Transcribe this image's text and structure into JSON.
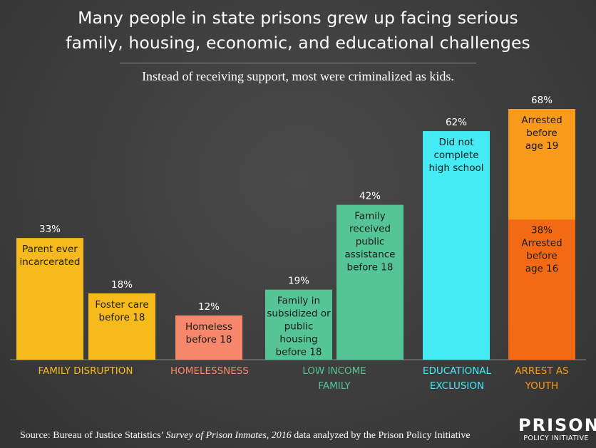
{
  "header": {
    "title_line1": "Many people in state prisons grew up facing serious",
    "title_line2": "family, housing, economic, and educational challenges",
    "subtitle": "Instead of receiving support, most were criminalized as kids."
  },
  "footer": {
    "source_prefix": "Source: Bureau of Justice Statistics’",
    "source_italic": "Survey of Prison Inmates, 2016",
    "source_suffix": "data analyzed by the Prison Policy Initiative",
    "logo_top": "PRISON",
    "logo_bottom": "POLICY INITIATIVE"
  },
  "chart_data": {
    "type": "bar",
    "unit": "%",
    "ylim": [
      0,
      68
    ],
    "grid": false,
    "bars": [
      {
        "value": 33,
        "value_label": "33%",
        "label": [
          "Parent ever",
          "incarcerated"
        ],
        "group": 0,
        "color": "#f6bb1a"
      },
      {
        "value": 18,
        "value_label": "18%",
        "label": [
          "Foster care",
          "before 18"
        ],
        "group": 0,
        "color": "#f6bb1a"
      },
      {
        "value": 12,
        "value_label": "12%",
        "label": [
          "Homeless",
          "before 18"
        ],
        "group": 1,
        "color": "#f7876a"
      },
      {
        "value": 19,
        "value_label": "19%",
        "label": [
          "Family in",
          "subsidized or",
          "public",
          "housing",
          "before 18"
        ],
        "group": 2,
        "color": "#55c596"
      },
      {
        "value": 42,
        "value_label": "42%",
        "label": [
          "Family",
          "received",
          "public",
          "assistance",
          "before 18"
        ],
        "group": 2,
        "color": "#55c596"
      },
      {
        "value": 62,
        "value_label": "62%",
        "label": [
          "Did not",
          "complete",
          "high school"
        ],
        "group": 3,
        "color": "#44eaf4"
      },
      {
        "value": 68,
        "value_label": "68%",
        "label": [
          "Arrested",
          "before",
          "age 19"
        ],
        "group": 4,
        "color": "#f99a1b"
      },
      {
        "value": 38,
        "value_label": "38%",
        "label": [
          "Arrested",
          "before",
          "age 16"
        ],
        "group": 4,
        "color": "#f26a13",
        "overlay": true
      }
    ],
    "groups": [
      {
        "name": [
          "FAMILY DISRUPTION"
        ],
        "color": "#f6bb1a"
      },
      {
        "name": [
          "HOMELESSNESS"
        ],
        "color": "#f7876a"
      },
      {
        "name": [
          "LOW INCOME",
          "FAMILY"
        ],
        "color": "#55c596"
      },
      {
        "name": [
          "EDUCATIONAL",
          "EXCLUSION"
        ],
        "color": "#44eaf4"
      },
      {
        "name": [
          "ARREST AS",
          "YOUTH"
        ],
        "color": "#f99a1b"
      }
    ]
  }
}
